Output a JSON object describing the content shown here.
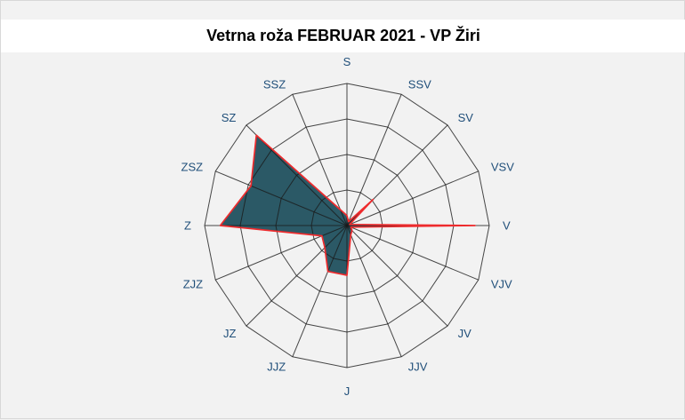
{
  "title": "Vetrna roža FEBRUAR 2021 - VP Žiri",
  "colors": {
    "background": "#f2f2f2",
    "title_band": "#ffffff",
    "title_text": "#000000",
    "grid_line": "#1a1a1a",
    "direction_label": "#1F4E79",
    "rose_fill": "#2B5966",
    "rose_outline": "#EE2B2D"
  },
  "chart_data": {
    "type": "radar",
    "subtype": "wind-rose",
    "title": "Vetrna roža FEBRUAR 2021 - VP Žiri",
    "categories": [
      "S",
      "SSV",
      "SV",
      "VSV",
      "V",
      "VJV",
      "JV",
      "JJV",
      "J",
      "JJZ",
      "JZ",
      "ZJZ",
      "Z",
      "ZSZ",
      "SZ",
      "SSZ"
    ],
    "values": [
      0.07,
      0.03,
      0.26,
      0.02,
      0.9,
      0.03,
      0.05,
      0.07,
      0.35,
      0.35,
      0.22,
      0.19,
      0.89,
      0.73,
      0.9,
      0.12
    ],
    "radial_axis": {
      "min": 0,
      "max": 1,
      "tick_labels_visible": false
    },
    "ring_fractions": [
      0.25,
      0.5,
      0.75,
      1.0
    ],
    "grid": true,
    "legend": false,
    "start_angle_deg": 0,
    "direction": "clockwise"
  }
}
